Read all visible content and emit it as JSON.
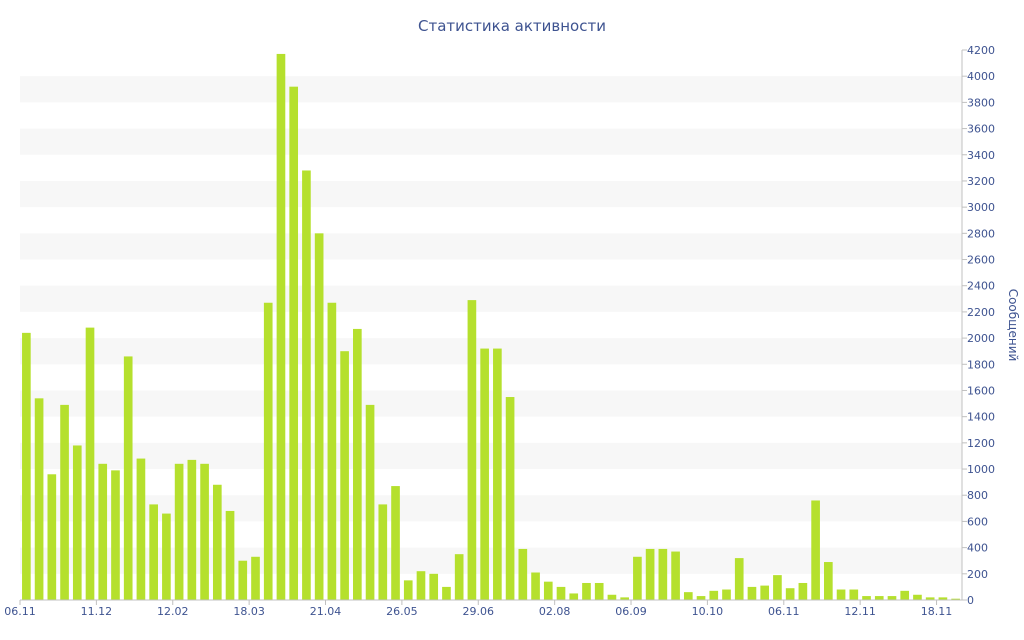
{
  "chart_data": {
    "type": "bar",
    "title": "Статистика активности",
    "xlabel": "",
    "ylabel": "Сообщений",
    "ylim": [
      0,
      4200
    ],
    "y_ticks": [
      0,
      200,
      400,
      600,
      800,
      1000,
      1200,
      1400,
      1600,
      1800,
      2000,
      2200,
      2400,
      2600,
      2800,
      3000,
      3200,
      3400,
      3600,
      3800,
      4000,
      4200
    ],
    "y_axis_side": "right",
    "grid": "alternating horizontal bands",
    "x_tick_labels": [
      "06.11",
      "11.12",
      "12.02",
      "18.03",
      "21.04",
      "26.05",
      "29.06",
      "02.08",
      "06.09",
      "10.10",
      "06.11",
      "12.11",
      "18.11"
    ],
    "bar_color": "#b5e02d",
    "band_color": "#f7f7f7",
    "values": [
      2040,
      1540,
      960,
      1490,
      1180,
      2080,
      1040,
      990,
      1860,
      1080,
      730,
      660,
      1040,
      1070,
      1040,
      880,
      680,
      300,
      330,
      2270,
      4170,
      3920,
      3280,
      2800,
      2270,
      1900,
      2070,
      1490,
      730,
      870,
      150,
      220,
      200,
      100,
      350,
      2290,
      1920,
      1920,
      1550,
      390,
      210,
      140,
      100,
      50,
      130,
      130,
      40,
      20,
      330,
      390,
      390,
      370,
      60,
      30,
      70,
      80,
      320,
      100,
      110,
      190,
      90,
      130,
      760,
      290,
      80,
      80,
      30,
      30,
      30,
      70,
      40,
      20,
      20,
      10
    ]
  }
}
